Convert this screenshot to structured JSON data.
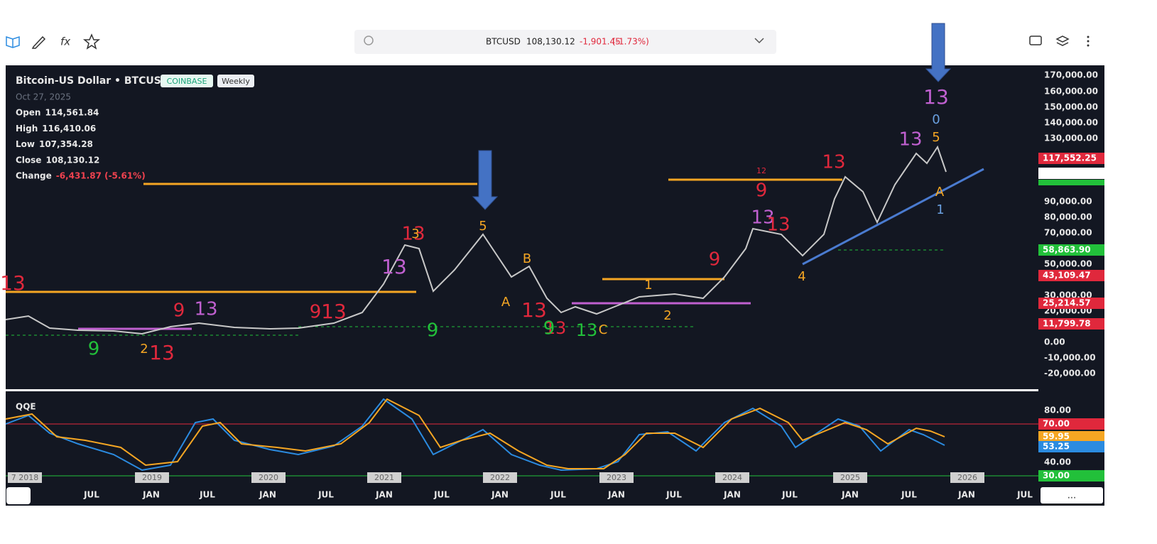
{
  "toolbar": {
    "symbol": "BTCUSD",
    "price": "108,130.12",
    "change": "-1,901.45",
    "change_pct": "(-1.73%)"
  },
  "legend": {
    "title": "Bitcoin-US Dollar • BTCUSD",
    "exchange": "COINBASE",
    "interval": "Weekly",
    "date": "Oct 27, 2025",
    "rows": [
      {
        "label": "Open",
        "value": "114,561.84"
      },
      {
        "label": "High",
        "value": "116,410.06"
      },
      {
        "label": "Low",
        "value": "107,354.28"
      },
      {
        "label": "Close",
        "value": "108,130.12"
      },
      {
        "label": "Change",
        "value": "-6,431.87 (-5.61%)"
      }
    ]
  },
  "price_axis": [
    "170,000.00",
    "160,000.00",
    "150,000.00",
    "140,000.00",
    "130,000.00",
    "90,000.00",
    "80,000.00",
    "70,000.00",
    "50,000.00",
    "30,000.00",
    "20,000.00",
    "0.00",
    "-10,000.00",
    "-20,000.00"
  ],
  "price_badges": [
    {
      "text": "117,552.25",
      "color": "#e0283c"
    },
    {
      "text": "58,863.90",
      "color": "#22c03a"
    },
    {
      "text": "43,109.47",
      "color": "#e0283c"
    },
    {
      "text": "25,214.57",
      "color": "#e0283c"
    },
    {
      "text": "11,799.78",
      "color": "#e0283c"
    }
  ],
  "annotations": [
    {
      "text": "13",
      "color": "#e0283c"
    },
    {
      "text": "9",
      "color": "#e0283c"
    },
    {
      "text": "13",
      "color": "#c060d0"
    },
    {
      "text": "9",
      "color": "#22c03a"
    },
    {
      "text": "2",
      "color": "#f5a623"
    },
    {
      "text": "13",
      "color": "#e0283c"
    },
    {
      "text": "9",
      "color": "#e0283c"
    },
    {
      "text": "13",
      "color": "#e0283c"
    },
    {
      "text": "13",
      "color": "#e0283c"
    },
    {
      "text": "13",
      "color": "#c060d0"
    },
    {
      "text": "3",
      "color": "#f5a623"
    },
    {
      "text": "9",
      "color": "#22c03a"
    },
    {
      "text": "5",
      "color": "#f5a623"
    },
    {
      "text": "B",
      "color": "#f5a623"
    },
    {
      "text": "A",
      "color": "#f5a623"
    },
    {
      "text": "13",
      "color": "#e0283c"
    },
    {
      "text": "13",
      "color": "#e0283c"
    },
    {
      "text": "9",
      "color": "#22c03a"
    },
    {
      "text": "13",
      "color": "#22c03a"
    },
    {
      "text": "C",
      "color": "#f5a623"
    },
    {
      "text": "1",
      "color": "#f5a623"
    },
    {
      "text": "2",
      "color": "#f5a623"
    },
    {
      "text": "9",
      "color": "#e0283c"
    },
    {
      "text": "9",
      "color": "#e0283c"
    },
    {
      "text": "13",
      "color": "#c060d0"
    },
    {
      "text": "13",
      "color": "#e0283c"
    },
    {
      "text": "4",
      "color": "#f5a623"
    },
    {
      "text": "13",
      "color": "#e0283c"
    },
    {
      "text": "13",
      "color": "#c060d0"
    },
    {
      "text": "5",
      "color": "#f5a623"
    },
    {
      "text": "13",
      "color": "#c060d0"
    },
    {
      "text": "0",
      "color": "#6aa0e0"
    },
    {
      "text": "A",
      "color": "#f5a623"
    },
    {
      "text": "1",
      "color": "#6aa0e0"
    },
    {
      "text": "12",
      "color": "#e0283c"
    }
  ],
  "qqe": {
    "label": "QQE",
    "axis": [
      "80.00",
      "40.00"
    ],
    "badges": [
      {
        "text": "70.00",
        "color": "#e0283c"
      },
      {
        "text": "59.95",
        "color": "#f5a623"
      },
      {
        "text": "53.25",
        "color": "#2b8be0"
      },
      {
        "text": "30.00",
        "color": "#22c03a"
      }
    ],
    "years": [
      "7 2018",
      "2019",
      "2020",
      "2021",
      "2022",
      "2023",
      "2024",
      "2025",
      "2026"
    ]
  },
  "time_axis": [
    "JUL",
    "JAN",
    "JUL",
    "JAN",
    "JUL",
    "JAN",
    "JUL",
    "JAN",
    "JUL",
    "JAN",
    "JUL",
    "JAN",
    "JUL",
    "JAN",
    "JUL",
    "JAN",
    "JUL"
  ],
  "more": "..."
}
